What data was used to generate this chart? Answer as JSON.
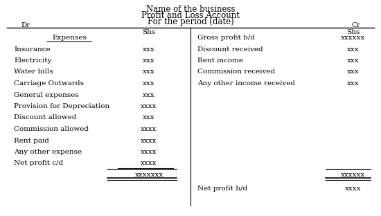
{
  "title1": "Name of the business",
  "title2": "Profit and Loss Account",
  "title3": "For the period (date)",
  "dr_label": "Dr",
  "cr_label": "Cr",
  "shs_label": "Shs",
  "bg_color": "#ffffff",
  "font_color": "#000000",
  "left_items": [
    [
      "Expenses",
      "",
      true
    ],
    [
      "Insurance",
      "xxx",
      false
    ],
    [
      "Electricity",
      "xxx",
      false
    ],
    [
      "Water bills",
      "xxx",
      false
    ],
    [
      "Carriage Outwards",
      "xxx",
      false
    ],
    [
      "General expenses",
      "xxx",
      false
    ],
    [
      "Provision for Depreciation",
      "xxxx",
      false
    ],
    [
      "Discount allowed",
      "xxx",
      false
    ],
    [
      "Commission allowed",
      "xxxx",
      false
    ],
    [
      "Rent paid",
      "xxxx",
      false
    ],
    [
      "Any other expense",
      "xxxx",
      false
    ],
    [
      "Net profit c/d",
      "xxxx",
      false
    ]
  ],
  "left_total": "xxxxxxx",
  "right_items": [
    [
      "Gross profit b/d",
      "xxxxxx"
    ],
    [
      "Discount received",
      "xxx"
    ],
    [
      "Rent income",
      "xxx"
    ],
    [
      "Commission received",
      "xxx"
    ],
    [
      "Any other income received",
      "xxx"
    ]
  ],
  "right_total": "xxxxxx",
  "bottom_right_label": "Net profit b/d",
  "bottom_right_value": "xxxx"
}
